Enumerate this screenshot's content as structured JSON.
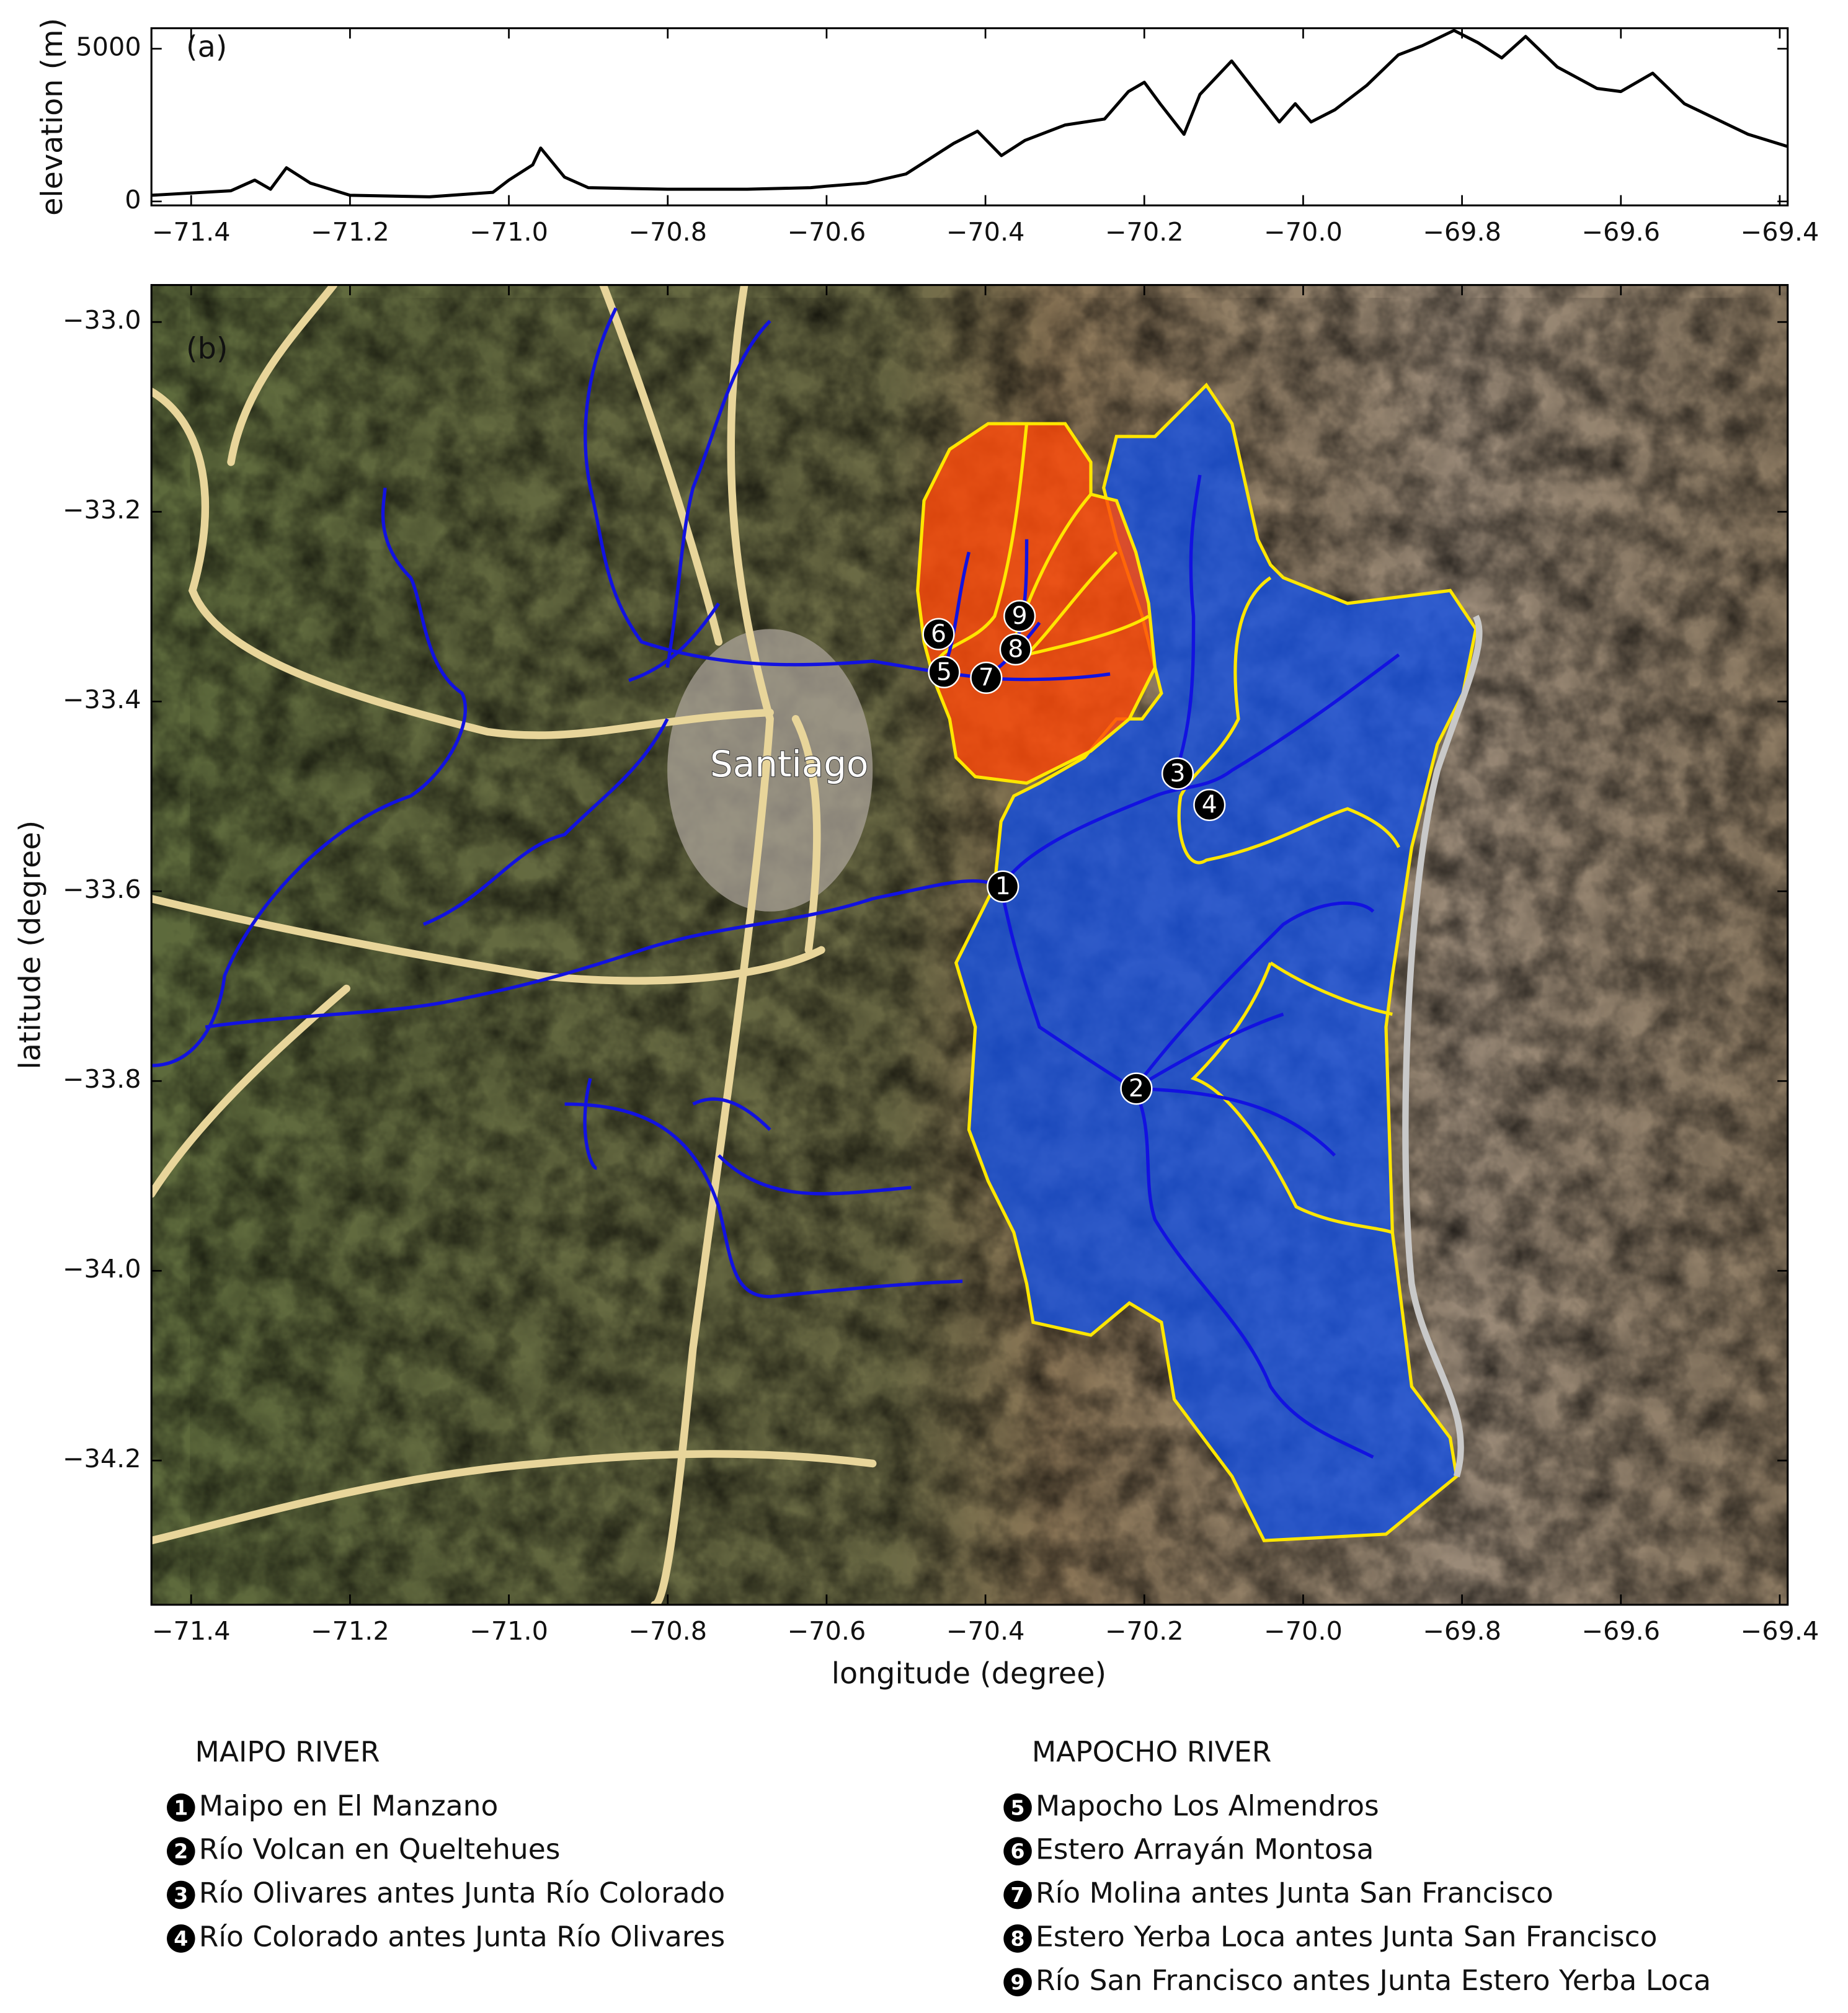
{
  "chart_data": [
    {
      "type": "line",
      "panel": "(a)",
      "ylabel": "elevation (m)",
      "x": [
        -71.45,
        -71.35,
        -71.32,
        -71.3,
        -71.28,
        -71.25,
        -71.2,
        -71.1,
        -71.02,
        -71.0,
        -70.97,
        -70.96,
        -70.93,
        -70.9,
        -70.8,
        -70.7,
        -70.62,
        -70.6,
        -70.55,
        -70.5,
        -70.47,
        -70.44,
        -70.41,
        -70.38,
        -70.35,
        -70.3,
        -70.25,
        -70.22,
        -70.2,
        -70.18,
        -70.15,
        -70.13,
        -70.09,
        -70.06,
        -70.03,
        -70.01,
        -69.99,
        -69.96,
        -69.92,
        -69.88,
        -69.85,
        -69.81,
        -69.78,
        -69.75,
        -69.72,
        -69.68,
        -69.63,
        -69.6,
        -69.56,
        -69.52,
        -69.48,
        -69.44,
        -69.39
      ],
      "values": [
        200,
        350,
        700,
        400,
        1100,
        600,
        200,
        150,
        300,
        700,
        1200,
        1750,
        800,
        450,
        400,
        400,
        450,
        500,
        600,
        900,
        1400,
        1900,
        2300,
        1500,
        2000,
        2500,
        2700,
        3600,
        3900,
        3200,
        2200,
        3500,
        4600,
        3600,
        2600,
        3200,
        2600,
        3000,
        3800,
        4800,
        5100,
        5600,
        5200,
        4700,
        5400,
        4400,
        3700,
        3600,
        4200,
        3200,
        2700,
        2200,
        1800
      ],
      "color": "#000000",
      "xlim": [
        -71.45,
        -69.39
      ],
      "ylim": [
        -130,
        5670
      ],
      "xticks": [
        {
          "value": -71.4,
          "label": "−71.4"
        },
        {
          "value": -71.2,
          "label": "−71.2"
        },
        {
          "value": -71.0,
          "label": "−71.0"
        },
        {
          "value": -70.8,
          "label": "−70.8"
        },
        {
          "value": -70.6,
          "label": "−70.6"
        },
        {
          "value": -70.4,
          "label": "−70.4"
        },
        {
          "value": -70.2,
          "label": "−70.2"
        },
        {
          "value": -70.0,
          "label": "−70.0"
        },
        {
          "value": -69.8,
          "label": "−69.8"
        },
        {
          "value": -69.6,
          "label": "−69.6"
        },
        {
          "value": -69.4,
          "label": "−69.4"
        }
      ],
      "yticks": [
        0,
        5000
      ]
    },
    {
      "type": "scatter",
      "panel": "(b)",
      "xlabel": "longitude (degree)",
      "ylabel": "latitude (degree)",
      "annotation": "Santiago",
      "x": [
        -70.378,
        -70.21,
        -70.158,
        -70.118,
        -70.452,
        -70.459,
        -70.399,
        -70.362,
        -70.357
      ],
      "values": [
        -33.595,
        -33.808,
        -33.476,
        -33.509,
        -33.369,
        -33.329,
        -33.375,
        -33.345,
        -33.31
      ],
      "point_labels": [
        "1",
        "2",
        "3",
        "4",
        "5",
        "6",
        "7",
        "8",
        "9"
      ],
      "color": "#000000",
      "xlim": [
        -71.45,
        -69.39
      ],
      "ylim": [
        -34.352,
        -32.961
      ],
      "xticks": [
        {
          "value": -71.4,
          "label": "−71.4"
        },
        {
          "value": -71.2,
          "label": "−71.2"
        },
        {
          "value": -71.0,
          "label": "−71.0"
        },
        {
          "value": -70.8,
          "label": "−70.8"
        },
        {
          "value": -70.6,
          "label": "−70.6"
        },
        {
          "value": -70.4,
          "label": "−70.4"
        },
        {
          "value": -70.2,
          "label": "−70.2"
        },
        {
          "value": -70.0,
          "label": "−70.0"
        },
        {
          "value": -69.8,
          "label": "−69.8"
        },
        {
          "value": -69.6,
          "label": "−69.6"
        },
        {
          "value": -69.4,
          "label": "−69.4"
        }
      ],
      "yticks": [
        {
          "value": -34.2,
          "label": "−34.2"
        },
        {
          "value": -34.0,
          "label": "−34.0"
        },
        {
          "value": -33.8,
          "label": "−33.8"
        },
        {
          "value": -33.6,
          "label": "−33.6"
        },
        {
          "value": -33.4,
          "label": "−33.4"
        },
        {
          "value": -33.2,
          "label": "−33.2"
        },
        {
          "value": -33.0,
          "label": "−33.0"
        }
      ],
      "legend": {
        "groups": [
          {
            "title": "MAIPO RIVER",
            "items": [
              "Maipo en El Manzano",
              "Río Volcan en Queltehues",
              "Río Olivares antes Junta Río Colorado",
              "Río Colorado antes Junta Río Olivares"
            ]
          },
          {
            "title": "MAPOCHO RIVER",
            "items": [
              "Mapocho Los Almendros",
              "Estero Arrayán Montosa",
              "Río Molina antes Junta San Francisco",
              "Estero Yerba Loca antes Junta San Francisco",
              "Río San Francisco antes Junta Estero Yerba Loca"
            ]
          }
        ]
      }
    }
  ]
}
